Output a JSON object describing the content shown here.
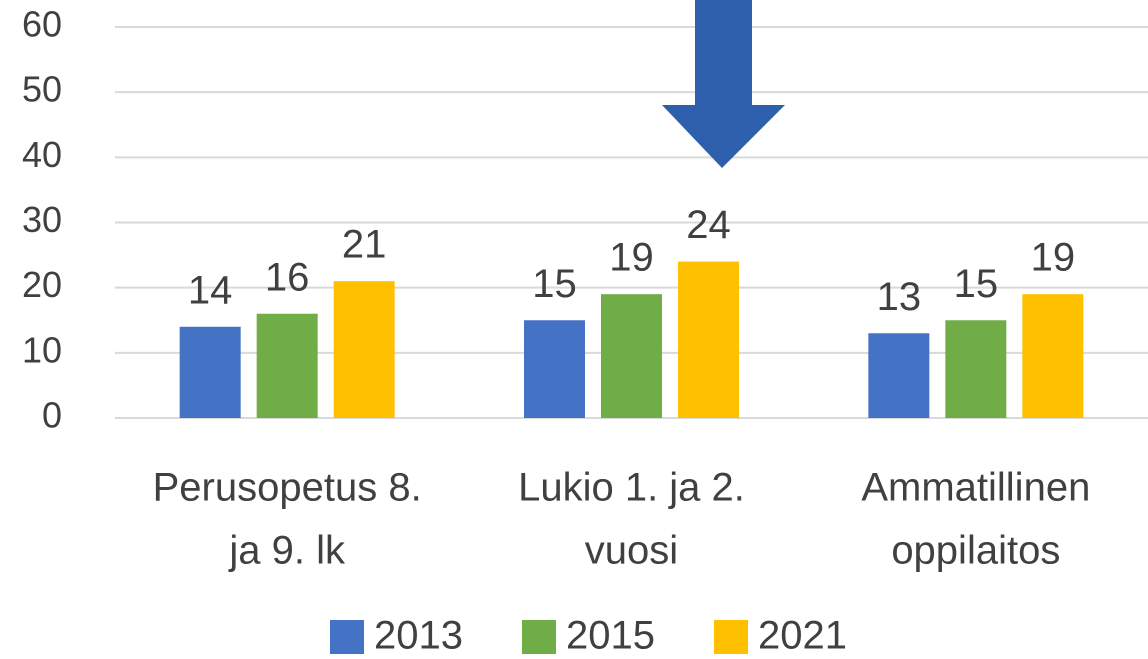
{
  "chart_data": {
    "type": "bar",
    "categories": [
      [
        "Perusopetus 8.",
        "ja 9. lk"
      ],
      [
        "Lukio 1. ja 2.",
        "vuosi"
      ],
      [
        "Ammatillinen",
        "oppilaitos"
      ]
    ],
    "series": [
      {
        "name": "2013",
        "color": "#4472c4",
        "values": [
          14,
          15,
          13
        ]
      },
      {
        "name": "2015",
        "color": "#70ad47",
        "values": [
          16,
          19,
          15
        ]
      },
      {
        "name": "2021",
        "color": "#ffc000",
        "values": [
          21,
          24,
          19
        ]
      }
    ],
    "ylim": [
      0,
      60
    ],
    "yticks": [
      0,
      10,
      20,
      30,
      40,
      50,
      60
    ],
    "grid": true,
    "legend": "bottom"
  }
}
